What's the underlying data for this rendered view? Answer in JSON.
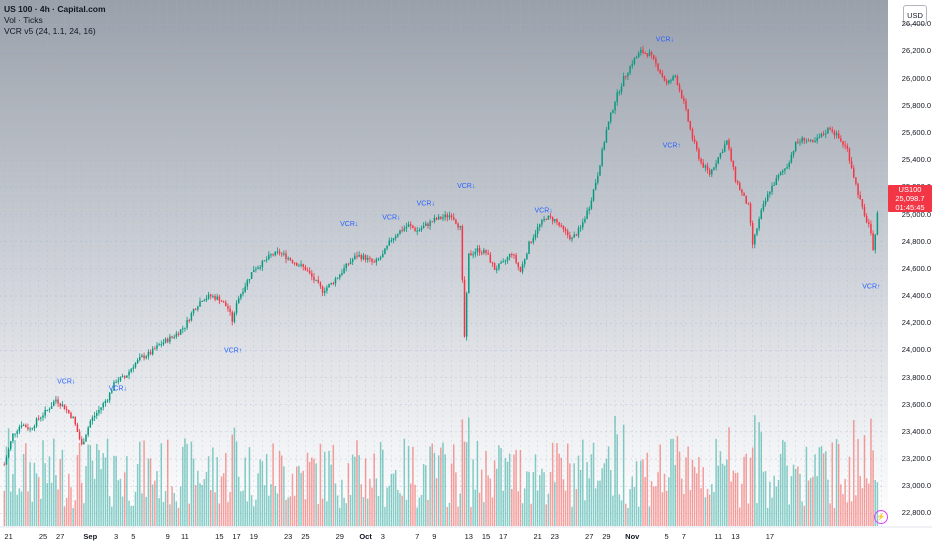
{
  "header": {
    "symbol_line": "US 100 · 4h · Capital.com",
    "indicator1": "Vol · Ticks",
    "indicator2": "VCR v5 (24, 1.1, 24, 16)"
  },
  "currency_button": "USD",
  "price_badge": {
    "symbol": "US100",
    "price": "25,098.7",
    "countdown": "01:45:45",
    "color": "#f23645"
  },
  "colors": {
    "up": "#089981",
    "down": "#f23645",
    "volume_up": "#26a69a",
    "volume_down": "#ef5350",
    "vcr_label": "#2962ff",
    "background_top": "#9aa0aa",
    "background_bottom": "#ffffff"
  },
  "chart_data": {
    "type": "candlestick",
    "timeframe": "4h",
    "y_axis": {
      "min": 22700,
      "max": 26520,
      "ticks": [
        "26,400.0",
        "26,200.0",
        "26,000.0",
        "25,800.0",
        "25,600.0",
        "25,400.0",
        "25,200.0",
        "25,000.0",
        "24,800.0",
        "24,600.0",
        "24,400.0",
        "24,200.0",
        "24,000.0",
        "23,800.0",
        "23,600.0",
        "23,400.0",
        "23,200.0",
        "23,000.0",
        "22,800.0"
      ]
    },
    "x_axis_labels": [
      {
        "label": "21",
        "x": 0.5
      },
      {
        "label": "25",
        "x": 4.5
      },
      {
        "label": "27",
        "x": 6.5
      },
      {
        "label": "Sep",
        "x": 10,
        "strong": true
      },
      {
        "label": "3",
        "x": 13
      },
      {
        "label": "5",
        "x": 15
      },
      {
        "label": "9",
        "x": 19
      },
      {
        "label": "11",
        "x": 21
      },
      {
        "label": "15",
        "x": 25
      },
      {
        "label": "17",
        "x": 27
      },
      {
        "label": "19",
        "x": 29
      },
      {
        "label": "23",
        "x": 33
      },
      {
        "label": "25",
        "x": 35
      },
      {
        "label": "29",
        "x": 39
      },
      {
        "label": "Oct",
        "x": 42,
        "strong": true
      },
      {
        "label": "3",
        "x": 44
      },
      {
        "label": "7",
        "x": 48
      },
      {
        "label": "9",
        "x": 50
      },
      {
        "label": "13",
        "x": 54
      },
      {
        "label": "15",
        "x": 56
      },
      {
        "label": "17",
        "x": 58
      },
      {
        "label": "21",
        "x": 62
      },
      {
        "label": "23",
        "x": 64
      },
      {
        "label": "27",
        "x": 68
      },
      {
        "label": "29",
        "x": 70
      },
      {
        "label": "Nov",
        "x": 73,
        "strong": true
      },
      {
        "label": "5",
        "x": 77
      },
      {
        "label": "7",
        "x": 79
      },
      {
        "label": "11",
        "x": 83
      },
      {
        "label": "13",
        "x": 85
      },
      {
        "label": "17",
        "x": 89
      }
    ],
    "close_path": [
      [
        0,
        23160
      ],
      [
        1,
        23380
      ],
      [
        2,
        23460
      ],
      [
        3,
        23420
      ],
      [
        4,
        23500
      ],
      [
        5,
        23560
      ],
      [
        6,
        23640
      ],
      [
        7,
        23580
      ],
      [
        8,
        23500
      ],
      [
        9,
        23300
      ],
      [
        10,
        23480
      ],
      [
        11,
        23560
      ],
      [
        12,
        23650
      ],
      [
        13,
        23780
      ],
      [
        14,
        23800
      ],
      [
        15,
        23890
      ],
      [
        16,
        23950
      ],
      [
        17,
        23980
      ],
      [
        18,
        24040
      ],
      [
        19,
        24080
      ],
      [
        20,
        24120
      ],
      [
        21,
        24180
      ],
      [
        22,
        24300
      ],
      [
        23,
        24380
      ],
      [
        24,
        24400
      ],
      [
        25,
        24380
      ],
      [
        26,
        24310
      ],
      [
        26.6,
        24200
      ],
      [
        27,
        24360
      ],
      [
        28,
        24480
      ],
      [
        29,
        24600
      ],
      [
        30,
        24640
      ],
      [
        31,
        24700
      ],
      [
        32,
        24720
      ],
      [
        33,
        24680
      ],
      [
        34,
        24640
      ],
      [
        35,
        24600
      ],
      [
        36,
        24520
      ],
      [
        37,
        24440
      ],
      [
        38,
        24490
      ],
      [
        39,
        24560
      ],
      [
        40,
        24640
      ],
      [
        41,
        24700
      ],
      [
        42,
        24680
      ],
      [
        43,
        24640
      ],
      [
        44,
        24700
      ],
      [
        45,
        24820
      ],
      [
        46,
        24880
      ],
      [
        47,
        24920
      ],
      [
        48,
        24880
      ],
      [
        49,
        24920
      ],
      [
        50,
        24960
      ],
      [
        51,
        24980
      ],
      [
        52,
        25000
      ],
      [
        53,
        24900
      ],
      [
        53.5,
        24100
      ],
      [
        54,
        24700
      ],
      [
        55,
        24740
      ],
      [
        56,
        24720
      ],
      [
        57,
        24600
      ],
      [
        58,
        24640
      ],
      [
        59,
        24720
      ],
      [
        60,
        24580
      ],
      [
        61,
        24780
      ],
      [
        62,
        24900
      ],
      [
        63,
        24980
      ],
      [
        64,
        24960
      ],
      [
        65,
        24880
      ],
      [
        66,
        24820
      ],
      [
        67,
        24900
      ],
      [
        68,
        25060
      ],
      [
        69,
        25300
      ],
      [
        70,
        25620
      ],
      [
        71,
        25840
      ],
      [
        72,
        26000
      ],
      [
        73,
        26120
      ],
      [
        74,
        26200
      ],
      [
        75,
        26180
      ],
      [
        76,
        26080
      ],
      [
        77,
        25960
      ],
      [
        78,
        26020
      ],
      [
        79,
        25820
      ],
      [
        80,
        25560
      ],
      [
        81,
        25380
      ],
      [
        82,
        25300
      ],
      [
        83,
        25420
      ],
      [
        84,
        25540
      ],
      [
        85,
        25260
      ],
      [
        86,
        25120
      ],
      [
        86.5,
        25060
      ],
      [
        87,
        24780
      ],
      [
        88,
        25020
      ],
      [
        89,
        25180
      ],
      [
        90,
        25280
      ],
      [
        91,
        25360
      ],
      [
        92,
        25520
      ],
      [
        93,
        25560
      ],
      [
        94,
        25520
      ],
      [
        95,
        25580
      ],
      [
        96,
        25640
      ],
      [
        97,
        25560
      ],
      [
        98,
        25480
      ],
      [
        99,
        25220
      ],
      [
        100,
        24980
      ],
      [
        100.6,
        24920
      ],
      [
        101,
        24720
      ],
      [
        101.6,
        25080
      ]
    ],
    "x_domain": [
      -0.5,
      102.5
    ],
    "vcr_markers": [
      {
        "x": 13.2,
        "price": 23690,
        "label": "VCR↓",
        "pos": "above"
      },
      {
        "x": 26.6,
        "price": 24050,
        "label": "VCR↑",
        "pos": "below"
      },
      {
        "x": 40.1,
        "price": 24900,
        "label": "VCR↓",
        "pos": "above"
      },
      {
        "x": 45.0,
        "price": 24950,
        "label": "VCR↓",
        "pos": "above"
      },
      {
        "x": 49.0,
        "price": 25050,
        "label": "VCR↓",
        "pos": "above"
      },
      {
        "x": 53.7,
        "price": 25180,
        "label": "VCR↓",
        "pos": "above"
      },
      {
        "x": 62.7,
        "price": 25000,
        "label": "VCR↓",
        "pos": "above"
      },
      {
        "x": 76.8,
        "price": 26260,
        "label": "VCR↓",
        "pos": "above"
      },
      {
        "x": 77.6,
        "price": 25560,
        "label": "VCR↑",
        "pos": "below"
      },
      {
        "x": 100.8,
        "price": 24520,
        "label": "VCR↑",
        "pos": "below"
      }
    ],
    "vcr_first": {
      "x": 7.2,
      "price": 23740,
      "label": "VCR↓",
      "pos": "above"
    }
  }
}
